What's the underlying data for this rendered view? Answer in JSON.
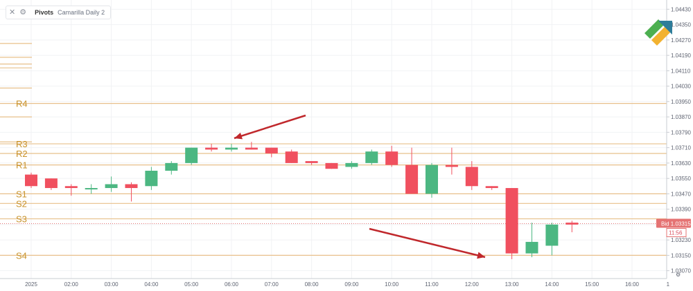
{
  "indicator": {
    "name": "Pivots",
    "params": "Camarilla Daily 2",
    "close_icon": "close-x-icon",
    "settings_icon": "gear-icon"
  },
  "price_badge": {
    "label": "Bid",
    "price": "1.03315",
    "countdown": "11:56"
  },
  "colors": {
    "up": "#4cb782",
    "down": "#f0505f",
    "pivot_line": "#e8c08a",
    "arrow": "#c0282c",
    "price_line": "#e57373"
  },
  "chart_data": {
    "type": "candlestick",
    "y_ticks": [
      "1.04430",
      "1.04350",
      "1.04270",
      "1.04190",
      "1.04110",
      "1.04030",
      "1.03950",
      "1.03870",
      "1.03790",
      "1.03710",
      "1.03630",
      "1.03550",
      "1.03470",
      "1.03390",
      "1.03310",
      "1.03230",
      "1.03150",
      "1.03070"
    ],
    "y_range": [
      1.0304,
      1.0446
    ],
    "x_labels": [
      "2025",
      "02:00",
      "03:00",
      "04:00",
      "05:00",
      "06:00",
      "07:00",
      "08:00",
      "09:00",
      "10:00",
      "11:00",
      "12:00",
      "13:00",
      "14:00",
      "15:00",
      "16:00"
    ],
    "x_label_partial": "1",
    "pivot_levels": [
      {
        "name": "R4",
        "value": 1.0394
      },
      {
        "name": "R3",
        "value": 1.0373
      },
      {
        "name": "R2",
        "value": 1.0368
      },
      {
        "name": "R1",
        "value": 1.0362
      },
      {
        "name": "S1",
        "value": 1.0347
      },
      {
        "name": "S2",
        "value": 1.0342
      },
      {
        "name": "S3",
        "value": 1.0334
      },
      {
        "name": "S4",
        "value": 1.0315
      }
    ],
    "other_levels": [
      1.04252,
      1.0418,
      1.04145,
      1.04125,
      1.0402,
      1.0387,
      1.0374
    ],
    "current_price": 1.03315,
    "candles": [
      {
        "t": 0.0,
        "o": 1.0357,
        "h": 1.0358,
        "l": 1.035,
        "c": 1.0351
      },
      {
        "t": 0.5,
        "o": 1.0355,
        "h": 1.0355,
        "l": 1.0349,
        "c": 1.035
      },
      {
        "t": 1.0,
        "o": 1.0351,
        "h": 1.0352,
        "l": 1.0346,
        "c": 1.035
      },
      {
        "t": 1.5,
        "o": 1.035,
        "h": 1.0352,
        "l": 1.0347,
        "c": 1.035
      },
      {
        "t": 2.0,
        "o": 1.035,
        "h": 1.0356,
        "l": 1.0348,
        "c": 1.0352
      },
      {
        "t": 2.5,
        "o": 1.0352,
        "h": 1.0353,
        "l": 1.0343,
        "c": 1.035
      },
      {
        "t": 3.0,
        "o": 1.0351,
        "h": 1.0361,
        "l": 1.0349,
        "c": 1.0359
      },
      {
        "t": 3.5,
        "o": 1.0359,
        "h": 1.0364,
        "l": 1.0357,
        "c": 1.0363
      },
      {
        "t": 4.0,
        "o": 1.0363,
        "h": 1.0371,
        "l": 1.0362,
        "c": 1.0371
      },
      {
        "t": 4.5,
        "o": 1.0371,
        "h": 1.0373,
        "l": 1.0369,
        "c": 1.037
      },
      {
        "t": 5.0,
        "o": 1.037,
        "h": 1.0373,
        "l": 1.0369,
        "c": 1.0371
      },
      {
        "t": 5.5,
        "o": 1.0371,
        "h": 1.0374,
        "l": 1.037,
        "c": 1.037
      },
      {
        "t": 6.0,
        "o": 1.0371,
        "h": 1.0371,
        "l": 1.0366,
        "c": 1.0368
      },
      {
        "t": 6.5,
        "o": 1.0369,
        "h": 1.037,
        "l": 1.0363,
        "c": 1.0363
      },
      {
        "t": 7.0,
        "o": 1.0364,
        "h": 1.0364,
        "l": 1.0362,
        "c": 1.0363
      },
      {
        "t": 7.5,
        "o": 1.0363,
        "h": 1.0363,
        "l": 1.036,
        "c": 1.036
      },
      {
        "t": 8.0,
        "o": 1.0361,
        "h": 1.0364,
        "l": 1.036,
        "c": 1.0363
      },
      {
        "t": 8.5,
        "o": 1.0363,
        "h": 1.037,
        "l": 1.0362,
        "c": 1.0369
      },
      {
        "t": 9.0,
        "o": 1.0369,
        "h": 1.0372,
        "l": 1.0361,
        "c": 1.0362
      },
      {
        "t": 9.5,
        "o": 1.0362,
        "h": 1.0371,
        "l": 1.0347,
        "c": 1.0347
      },
      {
        "t": 10.0,
        "o": 1.0347,
        "h": 1.0363,
        "l": 1.0345,
        "c": 1.0362
      },
      {
        "t": 10.5,
        "o": 1.0362,
        "h": 1.0371,
        "l": 1.0357,
        "c": 1.0361
      },
      {
        "t": 11.0,
        "o": 1.0361,
        "h": 1.0364,
        "l": 1.0349,
        "c": 1.0351
      },
      {
        "t": 11.5,
        "o": 1.0351,
        "h": 1.0351,
        "l": 1.0349,
        "c": 1.035
      },
      {
        "t": 12.0,
        "o": 1.035,
        "h": 1.035,
        "l": 1.0313,
        "c": 1.0316
      },
      {
        "t": 12.5,
        "o": 1.0316,
        "h": 1.0332,
        "l": 1.0314,
        "c": 1.0322
      },
      {
        "t": 13.0,
        "o": 1.032,
        "h": 1.0332,
        "l": 1.0315,
        "c": 1.0331
      },
      {
        "t": 13.5,
        "o": 1.0332,
        "h": 1.0333,
        "l": 1.0327,
        "c": 1.0331
      }
    ]
  }
}
